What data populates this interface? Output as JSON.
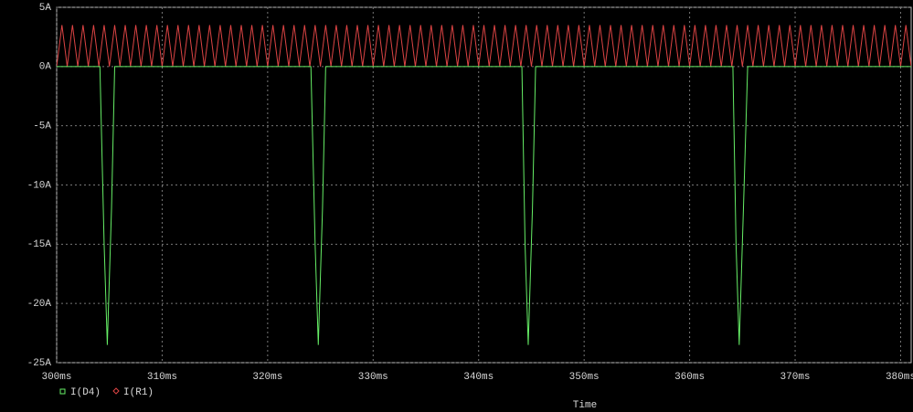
{
  "chart_data": {
    "type": "line",
    "x_label": "Time",
    "xlim": [
      300,
      381
    ],
    "ylim": [
      -25,
      5
    ],
    "xticks": [
      {
        "value": 300,
        "label": "300ms"
      },
      {
        "value": 310,
        "label": "310ms"
      },
      {
        "value": 320,
        "label": "320ms"
      },
      {
        "value": 330,
        "label": "330ms"
      },
      {
        "value": 340,
        "label": "340ms"
      },
      {
        "value": 350,
        "label": "350ms"
      },
      {
        "value": 360,
        "label": "360ms"
      },
      {
        "value": 370,
        "label": "370ms"
      },
      {
        "value": 380,
        "label": "380ms"
      }
    ],
    "yticks": [
      {
        "value": 5,
        "label": "5A"
      },
      {
        "value": 0,
        "label": "0A"
      },
      {
        "value": -5,
        "label": "-5A"
      },
      {
        "value": -10,
        "label": "-10A"
      },
      {
        "value": -15,
        "label": "-15A"
      },
      {
        "value": -20,
        "label": "-20A"
      },
      {
        "value": -25,
        "label": "-25A"
      }
    ],
    "grid": true,
    "series": [
      {
        "name": "I(D4)",
        "color": "#66ee66",
        "marker": "square",
        "x": [
          300,
          304.1,
          304.5,
          304.8,
          305.2,
          305.5,
          324.1,
          324.5,
          324.8,
          325.2,
          325.5,
          344.1,
          344.4,
          344.7,
          345.1,
          345.4,
          364.1,
          364.4,
          364.7,
          365.1,
          365.5,
          381
        ],
        "values": [
          0,
          0,
          -15,
          -23.5,
          -12,
          0,
          0,
          -15,
          -23.5,
          -12,
          0,
          0,
          -15,
          -23.5,
          -12,
          0,
          0,
          -15,
          -23.5,
          -12,
          0,
          0
        ]
      },
      {
        "name": "I(R1)",
        "color": "#dd4444",
        "marker": "diamond",
        "x": [
          300,
          300.5,
          301,
          301.5,
          302,
          302.5,
          303,
          303.5,
          304,
          304.5,
          305,
          305.5,
          306,
          306.5,
          307,
          307.5,
          308,
          308.5,
          309,
          309.5,
          310,
          310.5,
          311,
          311.5,
          312,
          312.5,
          313,
          313.5,
          314,
          314.5,
          315,
          315.5,
          316,
          316.5,
          317,
          317.5,
          318,
          318.5,
          319,
          319.5,
          320,
          320.5,
          321,
          321.5,
          322,
          322.5,
          323,
          323.5,
          324,
          324.5,
          325,
          325.5,
          326,
          326.5,
          327,
          327.5,
          328,
          328.5,
          329,
          329.5,
          330,
          330.5,
          331,
          331.5,
          332,
          332.5,
          333,
          333.5,
          334,
          334.5,
          335,
          335.5,
          336,
          336.5,
          337,
          337.5,
          338,
          338.5,
          339,
          339.5,
          340,
          340.5,
          341,
          341.5,
          342,
          342.5,
          343,
          343.5,
          344,
          344.5,
          345,
          345.5,
          346,
          346.5,
          347,
          347.5,
          348,
          348.5,
          349,
          349.5,
          350,
          350.5,
          351,
          351.5,
          352,
          352.5,
          353,
          353.5,
          354,
          354.5,
          355,
          355.5,
          356,
          356.5,
          357,
          357.5,
          358,
          358.5,
          359,
          359.5,
          360,
          360.5,
          361,
          361.5,
          362,
          362.5,
          363,
          363.5,
          364,
          364.5,
          365,
          365.5,
          366,
          366.5,
          367,
          367.5,
          368,
          368.5,
          369,
          369.5,
          370,
          370.5,
          371,
          371.5,
          372,
          372.5,
          373,
          373.5,
          374,
          374.5,
          375,
          375.5,
          376,
          376.5,
          377,
          377.5,
          378,
          378.5,
          379,
          379.5,
          380,
          380.5,
          381
        ],
        "values": [
          0,
          3.5,
          0,
          3.5,
          0,
          3.5,
          0,
          3.5,
          0,
          3.5,
          0,
          3.5,
          0,
          3.5,
          0,
          3.5,
          0,
          3.5,
          0,
          3.5,
          0,
          3.5,
          0,
          3.5,
          0,
          3.5,
          0,
          3.5,
          0,
          3.5,
          0,
          3.5,
          0,
          3.5,
          0,
          3.5,
          0,
          3.5,
          0,
          3.5,
          0,
          3.5,
          0,
          3.5,
          0,
          3.5,
          0,
          3.5,
          0,
          3.5,
          0,
          3.5,
          0,
          3.5,
          0,
          3.5,
          0,
          3.5,
          0,
          3.5,
          0,
          3.5,
          0,
          3.5,
          0,
          3.5,
          0,
          3.5,
          0,
          3.5,
          0,
          3.5,
          0,
          3.5,
          0,
          3.5,
          0,
          3.5,
          0,
          3.5,
          0,
          3.5,
          0,
          3.5,
          0,
          3.5,
          0,
          3.5,
          0,
          3.5,
          0,
          3.5,
          0,
          3.5,
          0,
          3.5,
          0,
          3.5,
          0,
          3.5,
          0,
          3.5,
          0,
          3.5,
          0,
          3.5,
          0,
          3.5,
          0,
          3.5,
          0,
          3.5,
          0,
          3.5,
          0,
          3.5,
          0,
          3.5,
          0,
          3.5,
          0,
          3.5,
          0,
          3.5,
          0,
          3.5,
          0,
          3.5,
          0,
          3.5,
          0,
          3.5,
          0,
          3.5,
          0,
          3.5,
          0,
          3.5,
          0,
          3.5,
          0,
          3.5,
          0,
          3.5,
          0,
          3.5,
          0,
          3.5,
          0,
          3.5,
          0,
          3.5,
          0,
          3.5,
          0,
          3.5,
          0,
          3.5,
          0,
          3.5,
          0,
          3.5,
          0
        ]
      }
    ]
  }
}
